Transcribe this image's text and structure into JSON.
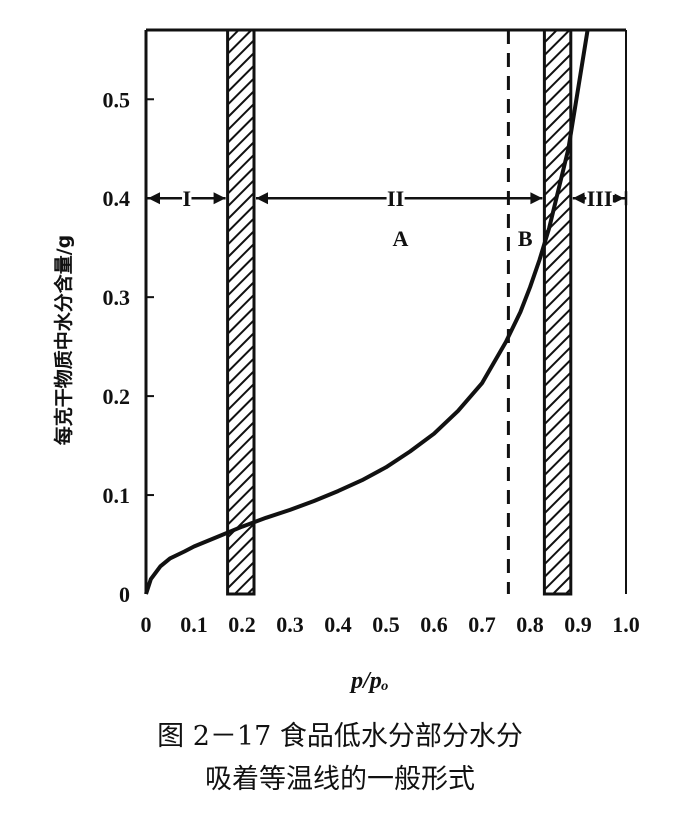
{
  "chart_data": {
    "type": "line",
    "xlabel": "p/pₒ",
    "ylabel": "每克干物质中水分含量/g",
    "xlim": [
      0,
      1.0
    ],
    "ylim": [
      0,
      0.57
    ],
    "x_ticks": [
      "0",
      "0.1",
      "0.2",
      "0.3",
      "0.4",
      "0.5",
      "0.6",
      "0.7",
      "0.8",
      "0.9",
      "1.0"
    ],
    "y_ticks": [
      "0",
      "0.1",
      "0.2",
      "0.3",
      "0.4",
      "0.5"
    ],
    "grid": false,
    "series": [
      {
        "x": [
          0,
          0.01,
          0.03,
          0.05,
          0.08,
          0.1,
          0.15,
          0.2,
          0.25,
          0.3,
          0.35,
          0.4,
          0.45,
          0.5,
          0.55,
          0.6,
          0.65,
          0.7,
          0.75,
          0.78,
          0.8,
          0.82,
          0.84,
          0.86,
          0.88,
          0.9,
          0.92
        ],
        "y": [
          0,
          0.015,
          0.028,
          0.036,
          0.043,
          0.048,
          0.058,
          0.068,
          0.077,
          0.085,
          0.094,
          0.104,
          0.115,
          0.128,
          0.144,
          0.162,
          0.185,
          0.213,
          0.255,
          0.285,
          0.31,
          0.338,
          0.37,
          0.41,
          0.45,
          0.51,
          0.57
        ]
      }
    ],
    "hatched_bands": [
      {
        "x_from": 0.17,
        "x_to": 0.225
      },
      {
        "x_from": 0.83,
        "x_to": 0.885
      }
    ],
    "dashed_line_x": 0.755,
    "annotations": {
      "region_I": "I",
      "region_II": "II",
      "region_III": "III",
      "label_A": "A",
      "label_B": "B",
      "arrow_y": 0.4
    }
  },
  "caption": {
    "line1": "图 2－17  食品低水分部分水分",
    "line2": "吸着等温线的一般形式"
  }
}
